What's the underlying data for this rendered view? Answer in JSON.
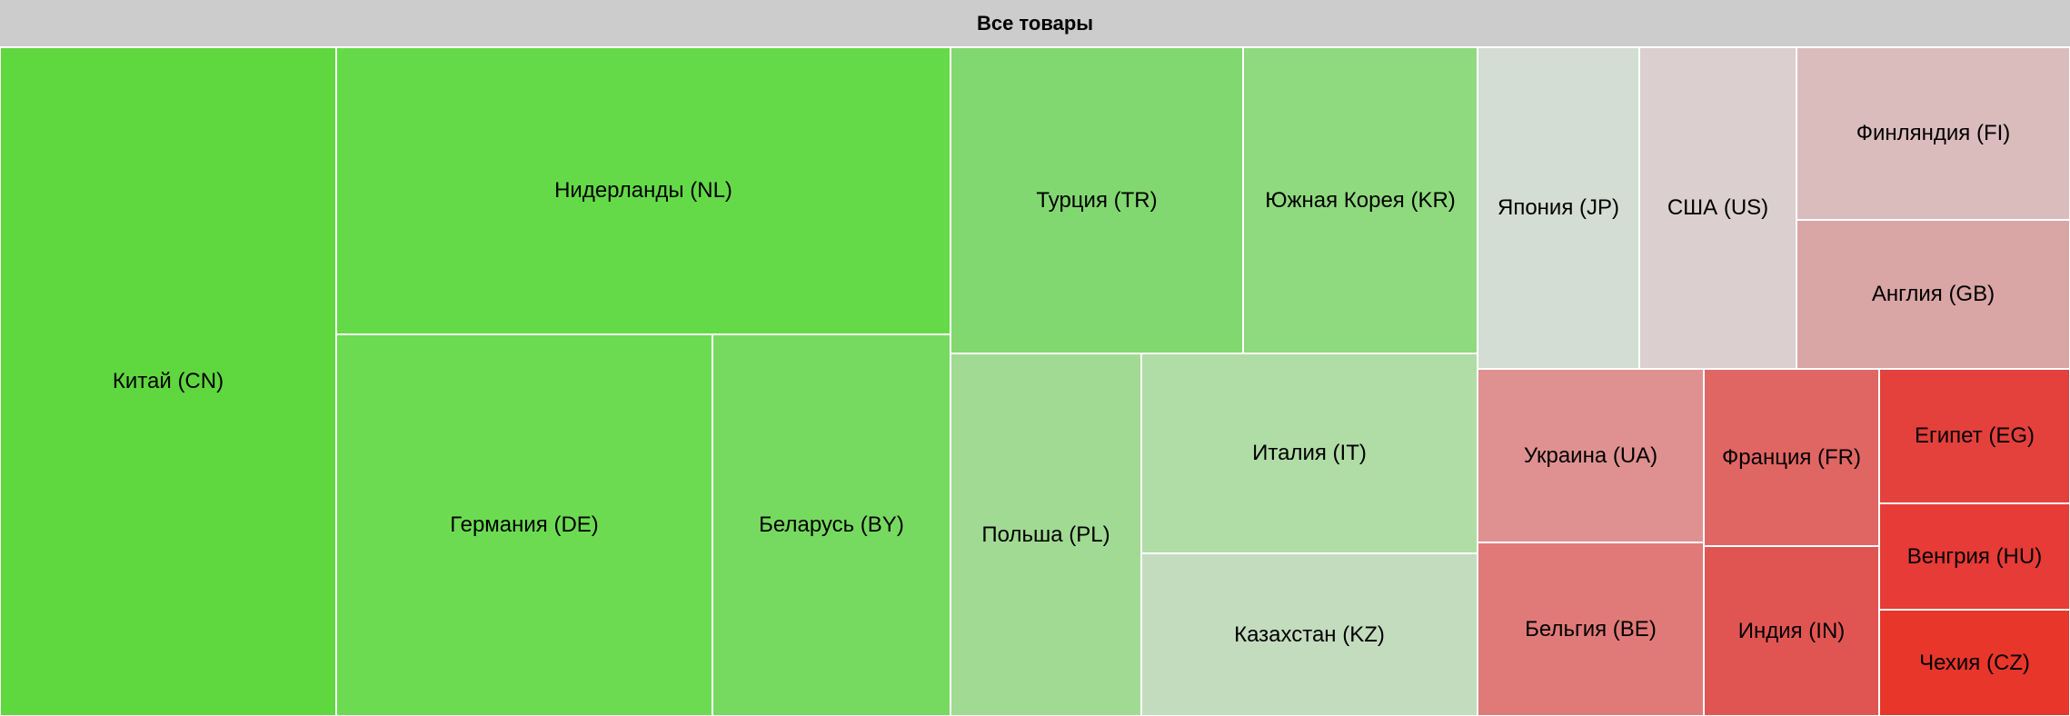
{
  "chart_data": {
    "type": "treemap",
    "title": "Все товары",
    "cells": [
      {
        "id": "CN",
        "label": "Китай (CN)",
        "color": "#5fd73f"
      },
      {
        "id": "NL",
        "label": "Нидерланды (NL)",
        "color": "#64da48"
      },
      {
        "id": "DE",
        "label": "Германия (DE)",
        "color": "#6cdb52"
      },
      {
        "id": "BY",
        "label": "Беларусь (BY)",
        "color": "#76da60"
      },
      {
        "id": "TR",
        "label": "Турция (TR)",
        "color": "#82d870"
      },
      {
        "id": "KR",
        "label": "Южная Корея (KR)",
        "color": "#8fda7e"
      },
      {
        "id": "PL",
        "label": "Польша (PL)",
        "color": "#a1da92"
      },
      {
        "id": "IT",
        "label": "Италия (IT)",
        "color": "#b0dca5"
      },
      {
        "id": "KZ",
        "label": "Казахстан (KZ)",
        "color": "#c3dcbe"
      },
      {
        "id": "JP",
        "label": "Япония (JP)",
        "color": "#d3ddd3"
      },
      {
        "id": "US",
        "label": "США (US)",
        "color": "#dccfd0"
      },
      {
        "id": "FI",
        "label": "Финляндия (FI)",
        "color": "#dbbcbd"
      },
      {
        "id": "GB",
        "label": "Англия (GB)",
        "color": "#d9a5a5"
      },
      {
        "id": "UA",
        "label": "Украина (UA)",
        "color": "#df9191"
      },
      {
        "id": "BE",
        "label": "Бельгия (BE)",
        "color": "#e07a78"
      },
      {
        "id": "FR",
        "label": "Франция (FR)",
        "color": "#e06663"
      },
      {
        "id": "IN",
        "label": "Индия (IN)",
        "color": "#e05552"
      },
      {
        "id": "EG",
        "label": "Египет (EG)",
        "color": "#e4403c"
      },
      {
        "id": "HU",
        "label": "Венгрия (HU)",
        "color": "#e63b36"
      },
      {
        "id": "CZ",
        "label": "Чехия (CZ)",
        "color": "#e8362b"
      }
    ]
  }
}
